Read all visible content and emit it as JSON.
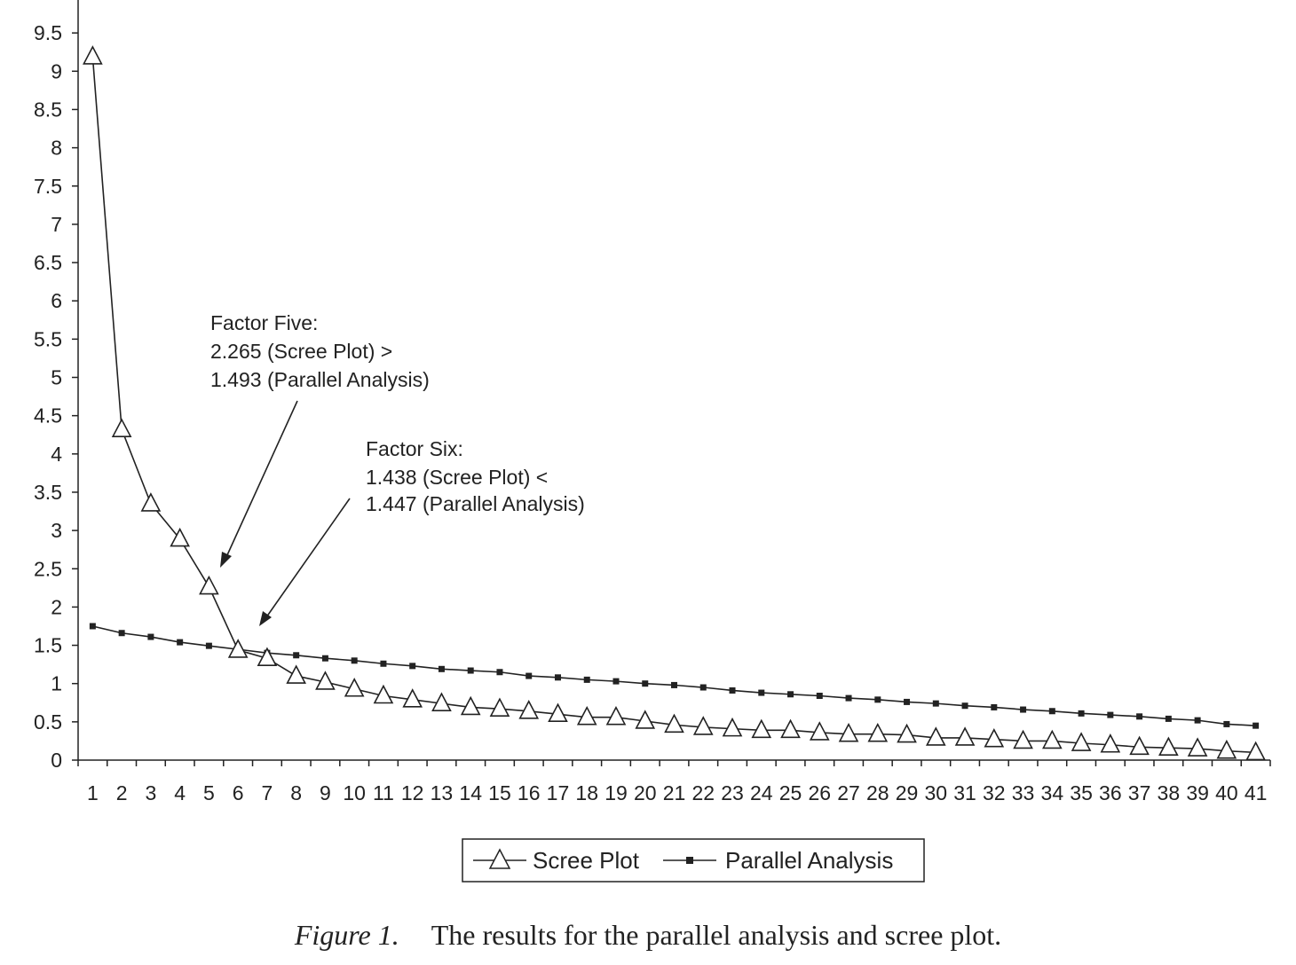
{
  "chart_data": {
    "type": "line",
    "title": "",
    "xlabel": "",
    "ylabel": "",
    "ylim": [
      0,
      10
    ],
    "y_ticks": [
      0,
      0.5,
      1,
      1.5,
      2,
      2.5,
      3,
      3.5,
      4,
      4.5,
      5,
      5.5,
      6,
      6.5,
      7,
      7.5,
      8,
      8.5,
      9,
      9.5
    ],
    "y_tick_labels": [
      "0",
      "0.5",
      "1",
      "1.5",
      "2",
      "2.5",
      "3",
      "3.5",
      "4",
      "4.5",
      "5",
      "5.5",
      "6",
      "6.5",
      "7",
      "7.5",
      "8",
      "8.5",
      "9",
      "9.5"
    ],
    "categories": [
      "1",
      "2",
      "3",
      "4",
      "5",
      "6",
      "7",
      "8",
      "9",
      "10",
      "11",
      "12",
      "13",
      "14",
      "15",
      "16",
      "17",
      "18",
      "19",
      "20",
      "21",
      "22",
      "23",
      "24",
      "25",
      "26",
      "27",
      "28",
      "29",
      "30",
      "31",
      "32",
      "33",
      "34",
      "35",
      "36",
      "37",
      "38",
      "39",
      "40",
      "41"
    ],
    "series": [
      {
        "name": "Scree Plot",
        "marker": "triangle",
        "color": "#222222",
        "values": [
          9.19,
          4.32,
          3.35,
          2.89,
          2.265,
          1.438,
          1.33,
          1.1,
          1.02,
          0.93,
          0.84,
          0.79,
          0.74,
          0.69,
          0.67,
          0.64,
          0.6,
          0.56,
          0.56,
          0.51,
          0.46,
          0.43,
          0.41,
          0.39,
          0.39,
          0.36,
          0.34,
          0.34,
          0.33,
          0.29,
          0.29,
          0.27,
          0.25,
          0.25,
          0.22,
          0.2,
          0.17,
          0.16,
          0.15,
          0.12,
          0.1
        ]
      },
      {
        "name": "Parallel Analysis",
        "marker": "square",
        "color": "#222222",
        "values": [
          1.75,
          1.66,
          1.61,
          1.54,
          1.493,
          1.447,
          1.4,
          1.37,
          1.33,
          1.3,
          1.26,
          1.23,
          1.19,
          1.17,
          1.15,
          1.1,
          1.08,
          1.05,
          1.03,
          1.0,
          0.98,
          0.95,
          0.91,
          0.88,
          0.86,
          0.84,
          0.81,
          0.79,
          0.76,
          0.74,
          0.71,
          0.69,
          0.66,
          0.64,
          0.61,
          0.59,
          0.57,
          0.54,
          0.52,
          0.47,
          0.45
        ]
      }
    ],
    "legend": {
      "placement": "bottom-center"
    },
    "grid": false,
    "annotations": [
      {
        "lines": [
          "Factor Five:",
          "2.265 (Scree Plot) >",
          "1.493 (Parallel Analysis)"
        ],
        "points_to": {
          "x": 5,
          "y": 2.5
        }
      },
      {
        "lines": [
          "Factor Six:",
          "1.438 (Scree Plot) <",
          "1.447 (Parallel Analysis)"
        ],
        "points_to": {
          "x": 6,
          "y": 1.75
        }
      }
    ]
  },
  "caption": {
    "figure_label": "Figure 1.",
    "text": "The results for the parallel analysis and scree plot."
  }
}
